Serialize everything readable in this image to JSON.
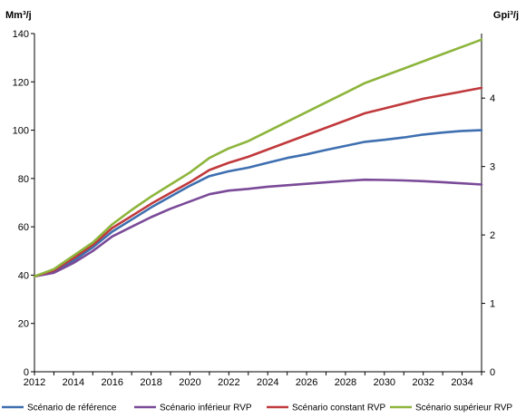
{
  "chart_data": {
    "type": "line",
    "title": "",
    "y_left_unit": "Mm³/j",
    "y_right_unit": "Gpi³/j",
    "xlim": [
      2012,
      2035
    ],
    "ylim": [
      0,
      140
    ],
    "y_right_lim": [
      0,
      4.944
    ],
    "x_ticks": [
      "2012",
      "2014",
      "2016",
      "2018",
      "2020",
      "2022",
      "2024",
      "2026",
      "2028",
      "2030",
      "2032",
      "2034"
    ],
    "y_ticks": [
      "0",
      "20",
      "40",
      "60",
      "80",
      "100",
      "120",
      "140"
    ],
    "y_right_ticks": [
      "0",
      "1",
      "2",
      "3",
      "4"
    ],
    "grid": false,
    "legend_position": "bottom",
    "x": [
      2012,
      2013,
      2014,
      2015,
      2016,
      2017,
      2018,
      2019,
      2020,
      2021,
      2022,
      2023,
      2024,
      2025,
      2026,
      2027,
      2028,
      2029,
      2030,
      2031,
      2032,
      2033,
      2034,
      2035
    ],
    "series": [
      {
        "name": "Scénario de référence",
        "color": "#3e6fb0",
        "values": [
          39.5,
          41.5,
          46,
          51.5,
          58,
          63,
          68,
          72.5,
          77,
          81,
          83,
          84.5,
          86.5,
          88.5,
          90,
          91.8,
          93.5,
          95.2,
          96,
          97,
          98.2,
          99,
          99.7,
          100
        ]
      },
      {
        "name": "Scénario inférieur RVP",
        "color": "#7a4a98",
        "values": [
          39.5,
          41,
          45,
          50,
          56,
          60,
          64,
          67.5,
          70.5,
          73.5,
          75,
          75.7,
          76.6,
          77.2,
          77.8,
          78.4,
          79,
          79.5,
          79.4,
          79.2,
          78.9,
          78.5,
          78.0,
          77.5
        ]
      },
      {
        "name": "Scénario constant RVP",
        "color": "#c0393c",
        "values": [
          39.5,
          42,
          47,
          52.5,
          59.5,
          64.5,
          69.5,
          74,
          78.5,
          83.5,
          86.5,
          89,
          92,
          95,
          98,
          101,
          104,
          107,
          109,
          111,
          113,
          114.5,
          116,
          117.5
        ]
      },
      {
        "name": "Scénario supérieur RVP",
        "color": "#8db53c",
        "values": [
          39.5,
          42.5,
          48,
          53.5,
          61,
          67,
          72.5,
          77.5,
          82.5,
          88.5,
          92.5,
          95.5,
          99.5,
          103.5,
          107.5,
          111.5,
          115.5,
          119.5,
          122.5,
          125.5,
          128.5,
          131.5,
          134.5,
          137.5
        ]
      }
    ]
  }
}
